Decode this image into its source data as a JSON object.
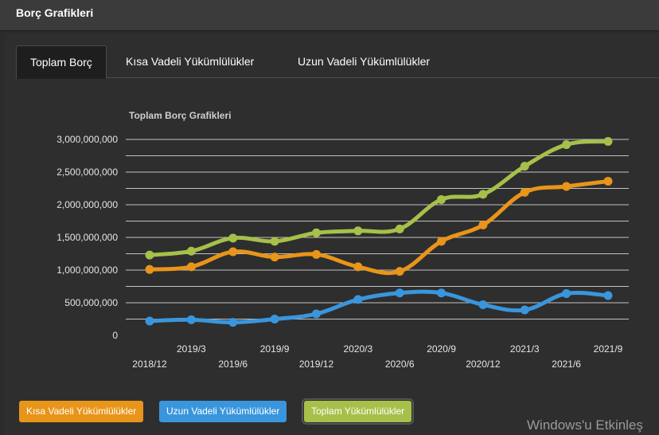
{
  "header": {
    "title": "Borç Grafikleri"
  },
  "tabs": [
    {
      "label": "Toplam Borç",
      "active": true
    },
    {
      "label": "Kısa Vadeli Yükümlülükler",
      "active": false
    },
    {
      "label": "Uzun Vadeli Yükümlülükler",
      "active": false
    }
  ],
  "colors": {
    "kisa": "#e8951a",
    "uzun": "#3a96dc",
    "toplam": "#a6c04a",
    "grid": "#dcdcdc",
    "axis_text": "#e6e6e6"
  },
  "chart_data": {
    "type": "line",
    "title": "Toplam Borç Grafikleri",
    "xlabel": "",
    "ylabel": "",
    "x": [
      "2018/12",
      "2019/3",
      "2019/6",
      "2019/9",
      "2019/12",
      "2020/3",
      "2020/6",
      "2020/9",
      "2020/12",
      "2021/3",
      "2021/6",
      "2021/9"
    ],
    "ylim": [
      0,
      3000000000
    ],
    "yticks": [
      0,
      500000000,
      1000000000,
      1500000000,
      2000000000,
      2500000000,
      3000000000
    ],
    "ytick_labels": [
      "0",
      "500,000,000",
      "1,000,000,000",
      "1,500,000,000",
      "2,000,000,000",
      "2,500,000,000",
      "3,000,000,000"
    ],
    "series": [
      {
        "key": "kisa",
        "name": "Kısa Vadeli Yükümlülükler",
        "values": [
          1010000000,
          1050000000,
          1280000000,
          1200000000,
          1240000000,
          1050000000,
          980000000,
          1440000000,
          1690000000,
          2190000000,
          2280000000,
          2360000000
        ]
      },
      {
        "key": "uzun",
        "name": "Uzun Vadeli Yükümlülükler",
        "values": [
          220000000,
          240000000,
          200000000,
          250000000,
          330000000,
          550000000,
          650000000,
          650000000,
          470000000,
          390000000,
          640000000,
          610000000
        ]
      },
      {
        "key": "toplam",
        "name": "Toplam Yükümlülükler",
        "values": [
          1230000000,
          1290000000,
          1490000000,
          1440000000,
          1570000000,
          1600000000,
          1630000000,
          2080000000,
          2160000000,
          2590000000,
          2920000000,
          2970000000
        ]
      }
    ],
    "grid": true,
    "legend_position": "bottom-left"
  },
  "watermark": {
    "text": "Windows'u Etkinleş"
  }
}
